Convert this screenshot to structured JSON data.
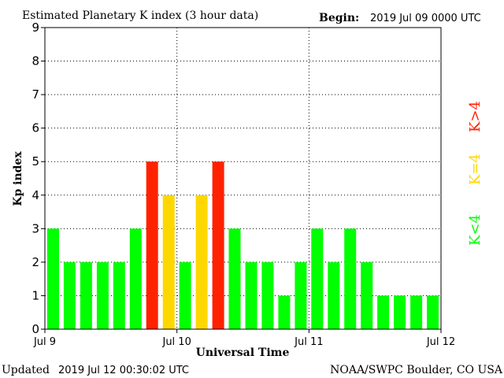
{
  "header": {
    "title": "Estimated Planetary K index (3 hour data)",
    "begin_label": "Begin:",
    "begin_value": "2019 Jul 09 0000 UTC"
  },
  "footer": {
    "updated_label": "Updated",
    "updated_value": "2019 Jul 12 00:30:02 UTC",
    "source": "NOAA/SWPC Boulder, CO USA"
  },
  "legend": {
    "low": "K<4",
    "mid": "K=4",
    "high": "K>4"
  },
  "colors": {
    "low": "#00ff00",
    "mid": "#ffd700",
    "high": "#ff2200",
    "axis": "#000000",
    "grid": "#000000"
  },
  "chart_data": {
    "type": "bar",
    "xlabel": "Universal Time",
    "ylabel": "Kp index",
    "ylim": [
      0,
      9
    ],
    "yticks": [
      0,
      1,
      2,
      3,
      4,
      5,
      6,
      7,
      8,
      9
    ],
    "xticks": [
      "Jul 9",
      "Jul 10",
      "Jul 11",
      "Jul 12"
    ],
    "grid": true,
    "values": [
      3,
      2,
      2,
      2,
      2,
      3,
      5,
      4,
      2,
      4,
      5,
      3,
      2,
      2,
      1,
      2,
      3,
      2,
      3,
      2,
      1,
      1,
      1,
      1
    ]
  }
}
